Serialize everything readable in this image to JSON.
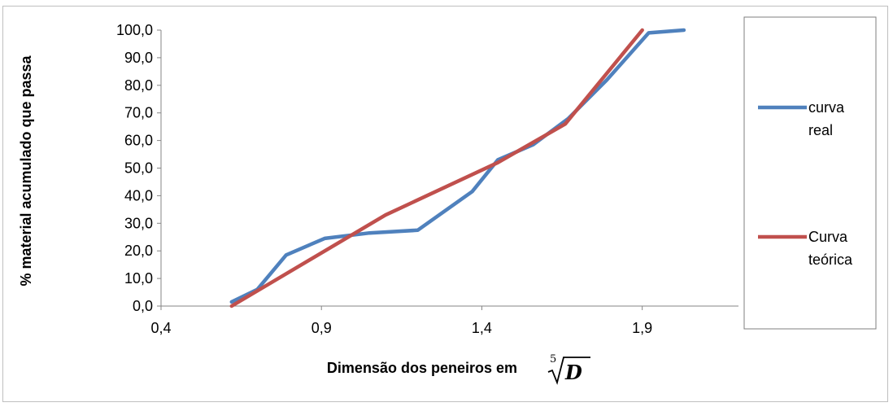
{
  "chart_data": {
    "type": "line",
    "xlabel": "Dimensão dos peneiros em",
    "xlabel_math": {
      "index": "5",
      "radicand": "D"
    },
    "ylabel": "% material acumulado que passa",
    "xlim": [
      0.4,
      2.2
    ],
    "ylim": [
      0,
      100
    ],
    "x_ticks": [
      0.4,
      0.9,
      1.4,
      1.9
    ],
    "x_tick_labels": [
      "0,4",
      "0,9",
      "1,4",
      "1,9"
    ],
    "y_ticks": [
      0,
      10,
      20,
      30,
      40,
      50,
      60,
      70,
      80,
      90,
      100
    ],
    "y_tick_labels": [
      "0,0",
      "10,0",
      "20,0",
      "30,0",
      "40,0",
      "50,0",
      "60,0",
      "70,0",
      "80,0",
      "90,0",
      "100,0"
    ],
    "grid": "horizontal",
    "legend_position": "right",
    "series": [
      {
        "name": "curva real",
        "legend_lines": [
          "curva",
          "real"
        ],
        "color": "#4f81bd",
        "x": [
          0.62,
          0.7,
          0.79,
          0.91,
          1.05,
          1.2,
          1.37,
          1.45,
          1.56,
          1.67,
          1.79,
          1.92,
          2.03
        ],
        "y": [
          1.5,
          6.0,
          18.5,
          24.5,
          26.5,
          27.5,
          41.5,
          53.0,
          58.5,
          68.0,
          82.0,
          99.0,
          100.0
        ]
      },
      {
        "name": "Curva teórica",
        "legend_lines": [
          "Curva",
          "teórica"
        ],
        "color": "#c0504d",
        "x": [
          0.62,
          1.1,
          1.45,
          1.66,
          1.9
        ],
        "y": [
          0.0,
          33.0,
          52.0,
          66.0,
          100.0
        ]
      }
    ]
  }
}
